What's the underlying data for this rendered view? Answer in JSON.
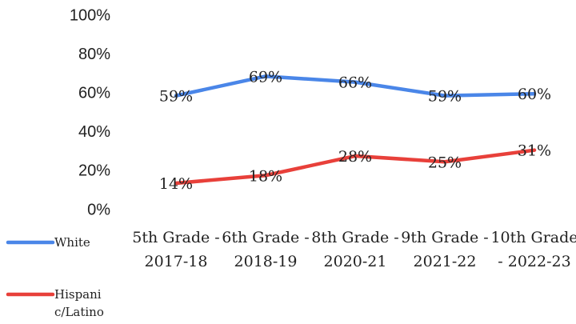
{
  "chart_data": {
    "type": "line",
    "categories": [
      "5th Grade - 2017-18",
      "6th Grade - 2018-19",
      "8th Grade - 2020-21",
      "9th Grade - 2021-22",
      "10th Grade - 2022-23"
    ],
    "series": [
      {
        "name": "White",
        "color": "#4a86e8",
        "values": [
          59,
          69,
          66,
          59,
          60
        ],
        "value_labels": [
          "59%",
          "69%",
          "66%",
          "59%",
          "60%"
        ]
      },
      {
        "name": "Hispanic/Latino",
        "color": "#e8403a",
        "values": [
          14,
          18,
          28,
          25,
          31
        ],
        "value_labels": [
          "14%",
          "18%",
          "28%",
          "25%",
          "31%"
        ]
      }
    ],
    "ylim": [
      0,
      100
    ],
    "yticks": [
      {
        "value": 0,
        "label": "0%"
      },
      {
        "value": 20,
        "label": "20%"
      },
      {
        "value": 40,
        "label": "40%"
      },
      {
        "value": 60,
        "label": "60%"
      },
      {
        "value": 80,
        "label": "80%"
      },
      {
        "value": 100,
        "label": "100%"
      }
    ],
    "legend": "left"
  }
}
